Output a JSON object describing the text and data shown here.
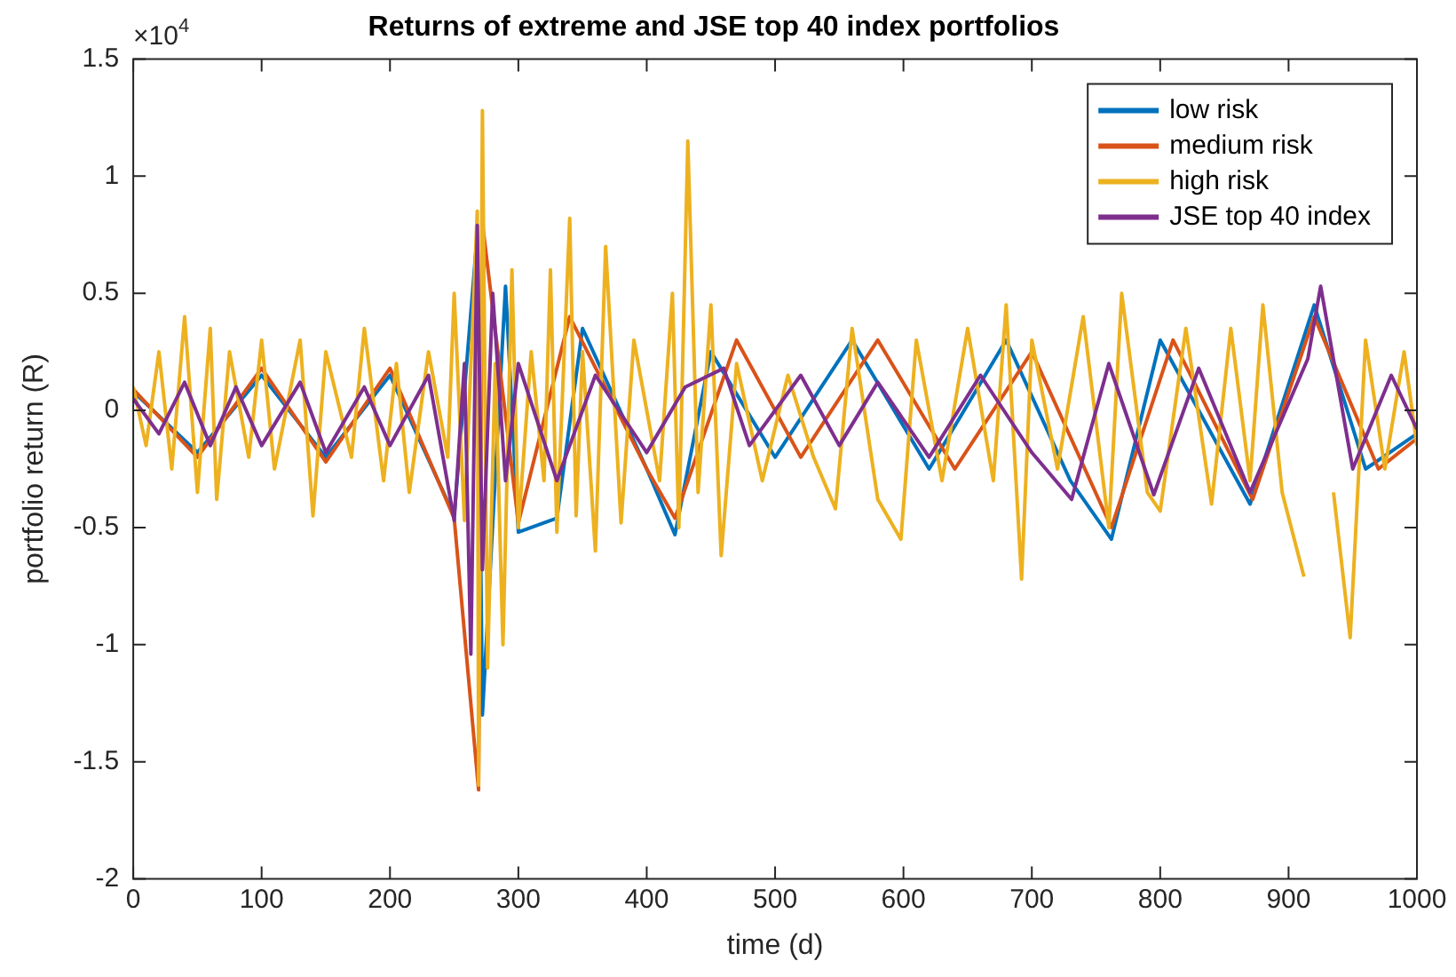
{
  "chart_data": {
    "type": "line",
    "title": "Returns of extreme and JSE top 40 index portfolios",
    "xlabel": "time (d)",
    "ylabel": "portfolio return (R)",
    "annotations": [
      "×10$^{4}$"
    ],
    "xlim": [
      0,
      1000
    ],
    "xticks": [
      0,
      100,
      200,
      300,
      400,
      500,
      600,
      700,
      800,
      900,
      1000
    ],
    "ylim": [
      -2,
      1.5
    ],
    "yticks": [
      -2,
      -1.5,
      -1,
      -0.5,
      0,
      0.5,
      1,
      1.5
    ],
    "grid": false,
    "legend": "top right",
    "marker": "none",
    "line_style": "solid",
    "series": [
      {
        "name": "low risk",
        "color": "#0072bd",
        "x": [
          0,
          50,
          100,
          150,
          200,
          250,
          268,
          272,
          290,
          300,
          330,
          350,
          400,
          422,
          450,
          500,
          560,
          620,
          680,
          730,
          762,
          800,
          870,
          920,
          960,
          1000
        ],
        "values": [
          0.08,
          -0.18,
          0.15,
          -0.2,
          0.15,
          -0.45,
          0.75,
          -1.3,
          0.53,
          -0.52,
          -0.46,
          0.35,
          -0.25,
          -0.53,
          0.25,
          -0.2,
          0.3,
          -0.25,
          0.3,
          -0.3,
          -0.55,
          0.3,
          -0.4,
          0.45,
          -0.25,
          -0.1
        ]
      },
      {
        "name": "medium risk",
        "color": "#d95319",
        "x": [
          0,
          50,
          100,
          150,
          200,
          250,
          269,
          272,
          300,
          340,
          400,
          422,
          470,
          520,
          580,
          640,
          700,
          762,
          810,
          872,
          920,
          970,
          1000
        ],
        "values": [
          0.09,
          -0.2,
          0.18,
          -0.22,
          0.18,
          -0.46,
          -1.62,
          0.8,
          -0.48,
          0.4,
          -0.25,
          -0.46,
          0.3,
          -0.2,
          0.3,
          -0.25,
          0.25,
          -0.5,
          0.3,
          -0.38,
          0.4,
          -0.25,
          -0.12
        ]
      },
      {
        "name": "high risk",
        "color": "#edb120",
        "x": [
          0,
          10,
          20,
          30,
          40,
          50,
          60,
          65,
          75,
          90,
          100,
          110,
          130,
          140,
          150,
          170,
          180,
          195,
          205,
          215,
          230,
          245,
          250,
          258,
          268,
          269,
          272,
          276,
          282,
          288,
          295,
          300,
          310,
          320,
          325,
          330,
          340,
          345,
          350,
          360,
          368,
          380,
          390,
          410,
          420,
          425,
          432,
          440,
          450,
          458,
          470,
          490,
          510,
          530,
          547,
          560,
          580,
          598,
          610,
          630,
          650,
          670,
          680,
          692,
          700,
          720,
          740,
          760,
          770,
          790,
          800,
          820,
          840,
          855,
          870,
          880,
          895,
          912,
          925,
          935,
          948,
          960,
          975,
          990,
          1000
        ],
        "values": [
          0.1,
          -0.15,
          0.25,
          -0.25,
          0.4,
          -0.35,
          0.35,
          -0.38,
          0.25,
          -0.2,
          0.3,
          -0.25,
          0.3,
          -0.45,
          0.25,
          -0.2,
          0.35,
          -0.3,
          0.2,
          -0.35,
          0.25,
          -0.2,
          0.5,
          -0.47,
          0.85,
          -1.6,
          1.28,
          -1.1,
          0.2,
          -1,
          0.6,
          -0.5,
          0.25,
          -0.3,
          0.6,
          -0.52,
          0.82,
          -0.45,
          0.25,
          -0.6,
          0.7,
          -0.48,
          0.3,
          -0.3,
          0.5,
          -0.5,
          1.15,
          -0.35,
          0.45,
          -0.62,
          0.2,
          -0.3,
          0.15,
          -0.2,
          -0.42,
          0.35,
          -0.38,
          -0.55,
          0.3,
          -0.3,
          0.35,
          -0.3,
          0.45,
          -0.72,
          0.3,
          -0.25,
          0.4,
          -0.5,
          0.5,
          -0.35,
          -0.43,
          0.35,
          -0.4,
          0.35,
          -0.3,
          0.45,
          -0.35,
          -0.71,
          null,
          -0.35,
          -0.97,
          0.3,
          -0.25,
          0.25,
          -0.15
        ]
      },
      {
        "name": "JSE top 40 index",
        "color": "#7e2f8e",
        "x": [
          0,
          20,
          40,
          60,
          80,
          100,
          130,
          150,
          180,
          200,
          230,
          250,
          258,
          263,
          268,
          272,
          280,
          290,
          300,
          330,
          360,
          400,
          430,
          460,
          480,
          520,
          550,
          580,
          620,
          660,
          700,
          731,
          760,
          795,
          830,
          870,
          915,
          925,
          950,
          980,
          1000
        ],
        "values": [
          0.05,
          -0.1,
          0.12,
          -0.15,
          0.1,
          -0.15,
          0.12,
          -0.18,
          0.1,
          -0.15,
          0.15,
          -0.47,
          0.2,
          -1.04,
          0.79,
          -0.68,
          0.5,
          -0.3,
          0.2,
          -0.3,
          0.15,
          -0.18,
          0.1,
          0.18,
          -0.15,
          0.15,
          -0.15,
          0.12,
          -0.2,
          0.15,
          -0.18,
          -0.38,
          0.2,
          -0.36,
          0.18,
          -0.35,
          0.22,
          0.53,
          -0.25,
          0.15,
          -0.08
        ]
      }
    ]
  }
}
